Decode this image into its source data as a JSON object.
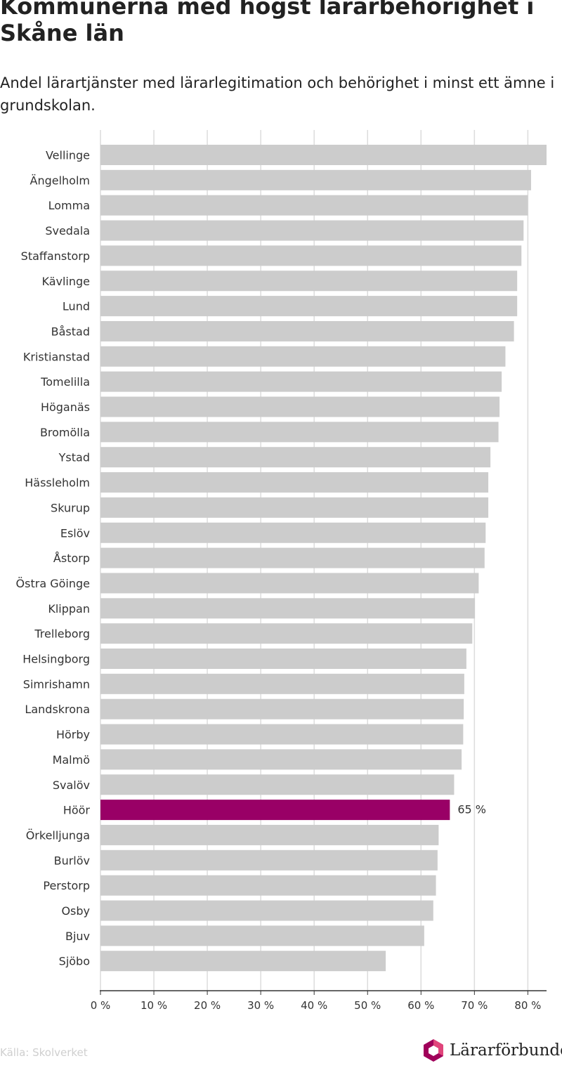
{
  "title": "Kommunerna med högst lärarbehörighet i Skåne län",
  "subtitle": "Andel lärartjänster med lärarlegitimation och behörighet i minst ett ämne i grundskolan.",
  "source": "Källa: Skolverket",
  "logo_text": "Lärarförbundet",
  "colors": {
    "bar": "#cccccc",
    "highlight": "#990066",
    "grid": "#dcdcdc",
    "axis": "#333333",
    "logo_magenta": "#a0005a",
    "logo_pink": "#e0457b"
  },
  "chart_data": {
    "type": "bar",
    "orientation": "horizontal",
    "categories": [
      "Vellinge",
      "Ängelholm",
      "Lomma",
      "Svedala",
      "Staffanstorp",
      "Kävlinge",
      "Lund",
      "Båstad",
      "Kristianstad",
      "Tomelilla",
      "Höganäs",
      "Bromölla",
      "Ystad",
      "Hässleholm",
      "Skurup",
      "Eslöv",
      "Åstorp",
      "Östra Göinge",
      "Klippan",
      "Trelleborg",
      "Helsingborg",
      "Simrishamn",
      "Landskrona",
      "Hörby",
      "Malmö",
      "Svalöv",
      "Höör",
      "Örkelljunga",
      "Burlöv",
      "Perstorp",
      "Osby",
      "Bjuv",
      "Sjöbo"
    ],
    "values": [
      83.5,
      80.6,
      80.0,
      79.2,
      78.8,
      78.0,
      78.0,
      77.4,
      75.8,
      75.1,
      74.7,
      74.5,
      73.0,
      72.6,
      72.6,
      72.1,
      71.9,
      70.8,
      70.1,
      69.6,
      68.5,
      68.1,
      68.0,
      67.9,
      67.6,
      66.2,
      65.4,
      63.3,
      63.1,
      62.8,
      62.3,
      60.6,
      53.4
    ],
    "highlight": "Höör",
    "highlight_label": "65 %",
    "xlim": [
      0,
      83.5
    ],
    "xticks": [
      0,
      10,
      20,
      30,
      40,
      50,
      60,
      70,
      80
    ],
    "xtick_labels": [
      "0 %",
      "10 %",
      "20 %",
      "30 %",
      "40 %",
      "50 %",
      "60 %",
      "70 %",
      "80 %"
    ],
    "grid": true
  }
}
